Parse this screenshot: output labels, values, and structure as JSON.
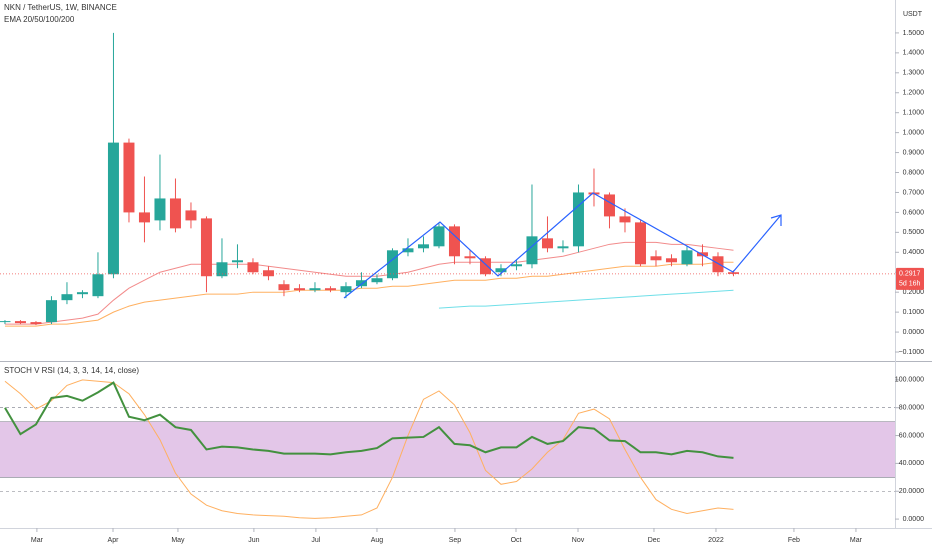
{
  "chart_data": [
    {
      "type": "candlestick",
      "title": "NKN / TetherUS, 1W, BINANCE",
      "subtitle": "EMA 20/50/100/200",
      "axis_unit": "USDT",
      "countdown": "5d 16h",
      "up_color": "#26a69a",
      "down_color": "#ef5350",
      "x": [
        0,
        1,
        2,
        3,
        4,
        5,
        6,
        7,
        8,
        9,
        10,
        11,
        12,
        13,
        14,
        15,
        16,
        17,
        18,
        19,
        20,
        21,
        22,
        23,
        24,
        25,
        26,
        27,
        28,
        29,
        30,
        31,
        32,
        33,
        34,
        35,
        36,
        37,
        38,
        39,
        40,
        41,
        42,
        43,
        44,
        45,
        46,
        47
      ],
      "open": [
        0.05,
        0.055,
        0.05,
        0.05,
        0.16,
        0.19,
        0.18,
        0.29,
        0.95,
        0.6,
        0.56,
        0.67,
        0.61,
        0.57,
        0.28,
        0.35,
        0.35,
        0.31,
        0.24,
        0.22,
        0.21,
        0.22,
        0.2,
        0.23,
        0.25,
        0.27,
        0.4,
        0.42,
        0.43,
        0.53,
        0.38,
        0.37,
        0.3,
        0.33,
        0.34,
        0.47,
        0.42,
        0.43,
        0.7,
        0.69,
        0.58,
        0.55,
        0.38,
        0.37,
        0.34,
        0.4,
        0.38,
        0.3
      ],
      "high": [
        0.06,
        0.06,
        0.055,
        0.18,
        0.25,
        0.21,
        0.4,
        1.5,
        0.97,
        0.78,
        0.89,
        0.77,
        0.65,
        0.58,
        0.47,
        0.44,
        0.37,
        0.33,
        0.26,
        0.24,
        0.25,
        0.23,
        0.25,
        0.3,
        0.29,
        0.42,
        0.47,
        0.48,
        0.55,
        0.54,
        0.41,
        0.38,
        0.34,
        0.36,
        0.74,
        0.58,
        0.46,
        0.74,
        0.82,
        0.7,
        0.62,
        0.56,
        0.41,
        0.39,
        0.43,
        0.44,
        0.4,
        0.31
      ],
      "low": [
        0.04,
        0.04,
        0.035,
        0.04,
        0.14,
        0.17,
        0.17,
        0.27,
        0.55,
        0.45,
        0.51,
        0.5,
        0.52,
        0.2,
        0.27,
        0.32,
        0.29,
        0.26,
        0.18,
        0.2,
        0.2,
        0.2,
        0.17,
        0.22,
        0.24,
        0.26,
        0.38,
        0.4,
        0.42,
        0.34,
        0.34,
        0.28,
        0.28,
        0.31,
        0.32,
        0.4,
        0.4,
        0.4,
        0.63,
        0.52,
        0.5,
        0.33,
        0.33,
        0.33,
        0.33,
        0.33,
        0.28,
        0.28
      ],
      "close": [
        0.055,
        0.045,
        0.04,
        0.16,
        0.19,
        0.2,
        0.29,
        0.95,
        0.6,
        0.55,
        0.67,
        0.52,
        0.56,
        0.28,
        0.35,
        0.36,
        0.3,
        0.28,
        0.21,
        0.21,
        0.22,
        0.21,
        0.23,
        0.26,
        0.27,
        0.41,
        0.42,
        0.44,
        0.53,
        0.38,
        0.37,
        0.29,
        0.32,
        0.34,
        0.48,
        0.42,
        0.43,
        0.7,
        0.69,
        0.58,
        0.55,
        0.34,
        0.36,
        0.35,
        0.41,
        0.38,
        0.3,
        0.2917
      ],
      "series": [
        {
          "color": "#f28b8b",
          "values": [
            0.04,
            0.04,
            0.04,
            0.05,
            0.06,
            0.07,
            0.09,
            0.16,
            0.22,
            0.26,
            0.3,
            0.32,
            0.34,
            0.34,
            0.34,
            0.34,
            0.34,
            0.33,
            0.32,
            0.31,
            0.3,
            0.29,
            0.28,
            0.28,
            0.28,
            0.29,
            0.3,
            0.32,
            0.34,
            0.35,
            0.35,
            0.35,
            0.35,
            0.35,
            0.36,
            0.37,
            0.38,
            0.4,
            0.42,
            0.44,
            0.45,
            0.45,
            0.45,
            0.44,
            0.44,
            0.43,
            0.42,
            0.41
          ]
        },
        {
          "color": "#ffb060",
          "values": [
            0.03,
            0.03,
            0.03,
            0.04,
            0.04,
            0.05,
            0.06,
            0.1,
            0.13,
            0.15,
            0.16,
            0.17,
            0.18,
            0.19,
            0.19,
            0.19,
            0.2,
            0.2,
            0.2,
            0.21,
            0.21,
            0.21,
            0.21,
            0.22,
            0.22,
            0.23,
            0.23,
            0.24,
            0.25,
            0.26,
            0.26,
            0.26,
            0.27,
            0.27,
            0.28,
            0.28,
            0.29,
            0.3,
            0.31,
            0.32,
            0.33,
            0.33,
            0.33,
            0.34,
            0.34,
            0.34,
            0.35,
            0.35
          ]
        },
        {
          "color": "#6fdfe8",
          "values": [
            null,
            null,
            null,
            null,
            null,
            null,
            null,
            null,
            null,
            null,
            null,
            null,
            null,
            null,
            null,
            null,
            null,
            null,
            null,
            null,
            null,
            null,
            null,
            null,
            null,
            null,
            null,
            null,
            0.12,
            0.125,
            0.13,
            0.13,
            0.135,
            0.14,
            0.145,
            0.15,
            0.155,
            0.16,
            0.165,
            0.17,
            0.175,
            0.18,
            0.185,
            0.19,
            0.195,
            0.2,
            0.205,
            0.21
          ]
        }
      ],
      "xlim": [
        -0.32,
        57.42
      ],
      "ylim": [
        -0.14,
        1.665
      ],
      "yticks": [
        {
          "value": 1.5,
          "label": "1.5000"
        },
        {
          "value": 1.4,
          "label": "1.4000"
        },
        {
          "value": 1.3,
          "label": "1.3000"
        },
        {
          "value": 1.2,
          "label": "1.2000"
        },
        {
          "value": 1.1,
          "label": "1.1000"
        },
        {
          "value": 1.0,
          "label": "1.0000"
        },
        {
          "value": 0.9,
          "label": "0.9000"
        },
        {
          "value": 0.8,
          "label": "0.8000"
        },
        {
          "value": 0.7,
          "label": "0.7000"
        },
        {
          "value": 0.6,
          "label": "0.6000"
        },
        {
          "value": 0.5,
          "label": "0.5000"
        },
        {
          "value": 0.4,
          "label": "0.4000"
        },
        {
          "value": 0.3,
          "label": "0.3000"
        },
        {
          "value": 0.2,
          "label": "0.2000"
        },
        {
          "value": 0.1,
          "label": "0.1000"
        },
        {
          "value": 0,
          "label": "0.0000"
        },
        {
          "value": -0.1,
          "label": "−0.1000"
        }
      ],
      "xticks": [
        {
          "value": 2.06,
          "label": "Mar"
        },
        {
          "value": 6.97,
          "label": "Apr"
        },
        {
          "value": 11.16,
          "label": "May"
        },
        {
          "value": 16.06,
          "label": "Jun"
        },
        {
          "value": 20.06,
          "label": "Jul"
        },
        {
          "value": 24,
          "label": "Aug"
        },
        {
          "value": 29.03,
          "label": "Sep"
        },
        {
          "value": 32.97,
          "label": "Oct"
        },
        {
          "value": 36.97,
          "label": "Nov"
        },
        {
          "value": 41.87,
          "label": "Dec"
        },
        {
          "value": 45.87,
          "label": "2022"
        },
        {
          "value": 50.9,
          "label": "Feb"
        },
        {
          "value": 54.9,
          "label": "Mar"
        }
      ]
    },
    {
      "type": "line",
      "title": "STOCH V RSI (14, 3, 3, 14, 14, close)",
      "x": [
        0,
        1,
        2,
        3,
        4,
        5,
        6,
        7,
        8,
        9,
        10,
        11,
        12,
        13,
        14,
        15,
        16,
        17,
        18,
        19,
        20,
        21,
        22,
        23,
        24,
        25,
        26,
        27,
        28,
        29,
        30,
        31,
        32,
        33,
        34,
        35,
        36,
        37,
        38,
        39,
        40,
        41,
        42,
        43,
        44,
        45,
        46,
        47
      ],
      "series": [
        {
          "color": "#ffb060",
          "width": 1,
          "values": [
            99,
            90,
            79,
            85,
            96,
            100,
            99,
            98,
            90,
            75,
            57,
            33,
            18,
            10,
            6,
            4,
            3,
            2.5,
            2,
            1,
            0.5,
            1,
            2,
            3,
            8,
            30,
            60,
            86,
            92,
            82,
            62,
            35,
            25,
            27,
            36,
            48,
            57,
            76,
            79,
            72,
            50,
            30,
            14,
            7,
            4,
            6,
            8,
            7
          ]
        },
        {
          "color": "#43913f",
          "width": 2,
          "values": [
            80,
            61,
            68,
            87,
            88.5,
            85,
            91,
            98,
            73.5,
            71,
            75,
            66,
            64,
            50,
            52,
            51.5,
            50,
            49,
            47,
            47,
            47,
            46.5,
            48,
            49,
            51,
            58,
            58.5,
            59,
            66,
            54,
            53,
            48,
            51.5,
            51.5,
            59,
            54,
            56,
            66,
            65,
            56.5,
            56,
            48,
            48,
            46.5,
            49,
            48,
            45,
            44
          ]
        }
      ],
      "band": [
        30,
        70
      ],
      "band_color": "#e3c6e8",
      "levels": [
        80,
        20
      ],
      "xlim": [
        -0.32,
        57.42
      ],
      "ylim": [
        -6.4,
        112.1
      ],
      "yticks": [
        {
          "value": 100,
          "label": "100.0000"
        },
        {
          "value": 80,
          "label": "80.0000"
        },
        {
          "value": 60,
          "label": "60.0000"
        },
        {
          "value": 40,
          "label": "40.0000"
        },
        {
          "value": 20,
          "label": "20.0000"
        },
        {
          "value": 0,
          "label": "0.0000"
        }
      ]
    }
  ]
}
